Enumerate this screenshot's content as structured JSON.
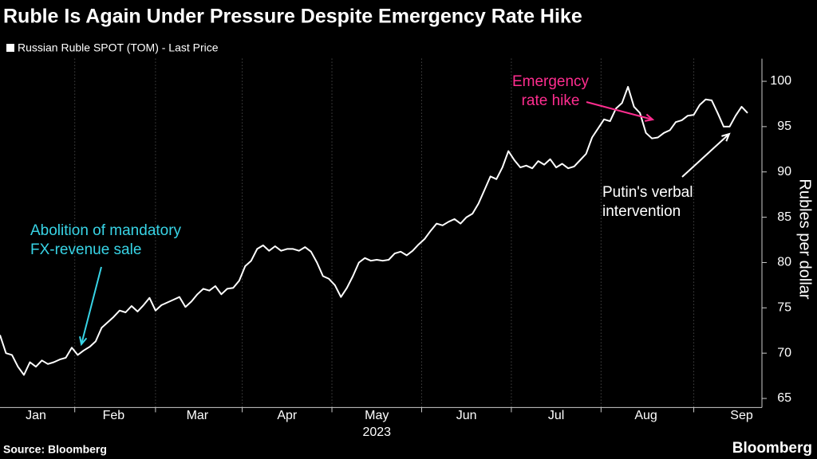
{
  "chart_data": {
    "type": "line",
    "title": "Ruble Is Again Under Pressure Despite Emergency Rate Hike",
    "source": "Source: Bloomberg",
    "brand": "Bloomberg",
    "xlabel": "2023",
    "ylabel": "Rubles per dollar",
    "categories": [
      null,
      null,
      null,
      null,
      null,
      null,
      "Jan",
      null,
      null,
      null,
      null,
      null,
      null,
      null,
      null,
      null,
      null,
      null,
      null,
      "Feb",
      null,
      null,
      null,
      null,
      null,
      null,
      null,
      null,
      null,
      null,
      null,
      null,
      null,
      "Mar",
      null,
      null,
      null,
      null,
      null,
      null,
      null,
      null,
      null,
      null,
      null,
      null,
      null,
      null,
      "Apr",
      null,
      null,
      null,
      null,
      null,
      null,
      null,
      null,
      null,
      null,
      null,
      null,
      null,
      null,
      "May",
      null,
      null,
      null,
      null,
      null,
      null,
      null,
      null,
      null,
      null,
      null,
      null,
      null,
      null,
      "Jun",
      null,
      null,
      null,
      null,
      null,
      null,
      null,
      null,
      null,
      null,
      null,
      null,
      null,
      null,
      "Jul",
      null,
      null,
      null,
      null,
      null,
      null,
      null,
      null,
      null,
      null,
      null,
      null,
      null,
      null,
      "Aug",
      null,
      null,
      null,
      null,
      null,
      null,
      null,
      null,
      null,
      null,
      null,
      null,
      null,
      null,
      null,
      "Sep",
      null
    ],
    "series": [
      {
        "name": "Russian Ruble SPOT (TOM) - Last Price",
        "color": "#ffffff",
        "values": [
          72,
          70,
          69.8,
          68.5,
          67.6,
          69,
          68.5,
          69.2,
          68.8,
          69,
          69.3,
          69.5,
          70.6,
          69.8,
          70.3,
          70.7,
          71.3,
          72.8,
          73.4,
          74,
          74.7,
          74.5,
          75.2,
          74.6,
          75.3,
          76.1,
          74.7,
          75.3,
          75.6,
          75.9,
          76.2,
          75.1,
          75.7,
          76.5,
          77.1,
          76.9,
          77.4,
          76.5,
          77.1,
          77.2,
          78,
          79.6,
          80.2,
          81.5,
          81.9,
          81.3,
          81.8,
          81.3,
          81.5,
          81.5,
          81.3,
          81.7,
          81.2,
          80,
          78.5,
          78.2,
          77.5,
          76.2,
          77.2,
          78.5,
          80,
          80.5,
          80.2,
          80.3,
          80.2,
          80.3,
          81,
          81.2,
          80.8,
          81.3,
          82,
          82.6,
          83.5,
          84.3,
          84.1,
          84.5,
          84.8,
          84.3,
          85,
          85.4,
          86.5,
          88,
          89.5,
          89.2,
          90.5,
          92.3,
          91.3,
          90.5,
          90.7,
          90.4,
          91.2,
          90.8,
          91.4,
          90.5,
          90.9,
          90.4,
          90.6,
          91.3,
          92,
          93.8,
          94.8,
          95.8,
          95.6,
          97,
          97.6,
          99.4,
          97.2,
          96.5,
          94.3,
          93.7,
          93.8,
          94.3,
          94.6,
          95.5,
          95.7,
          96.2,
          96.3,
          97.4,
          98,
          97.9,
          96.5,
          95,
          95,
          96.2,
          97.2,
          96.5
        ]
      }
    ],
    "ylim": [
      64,
      102.5
    ],
    "yticks": [
      65,
      70,
      75,
      80,
      85,
      90,
      95,
      100
    ],
    "annotations": [
      {
        "text": [
          "Emergency",
          "rate hike"
        ],
        "color": "#ff2d8f"
      },
      {
        "text": [
          "Abolition of mandatory",
          "FX-revenue sale"
        ],
        "color": "#38d4e6"
      },
      {
        "text": [
          "Putin's verbal",
          "intervention"
        ],
        "color": "#ffffff"
      }
    ]
  }
}
